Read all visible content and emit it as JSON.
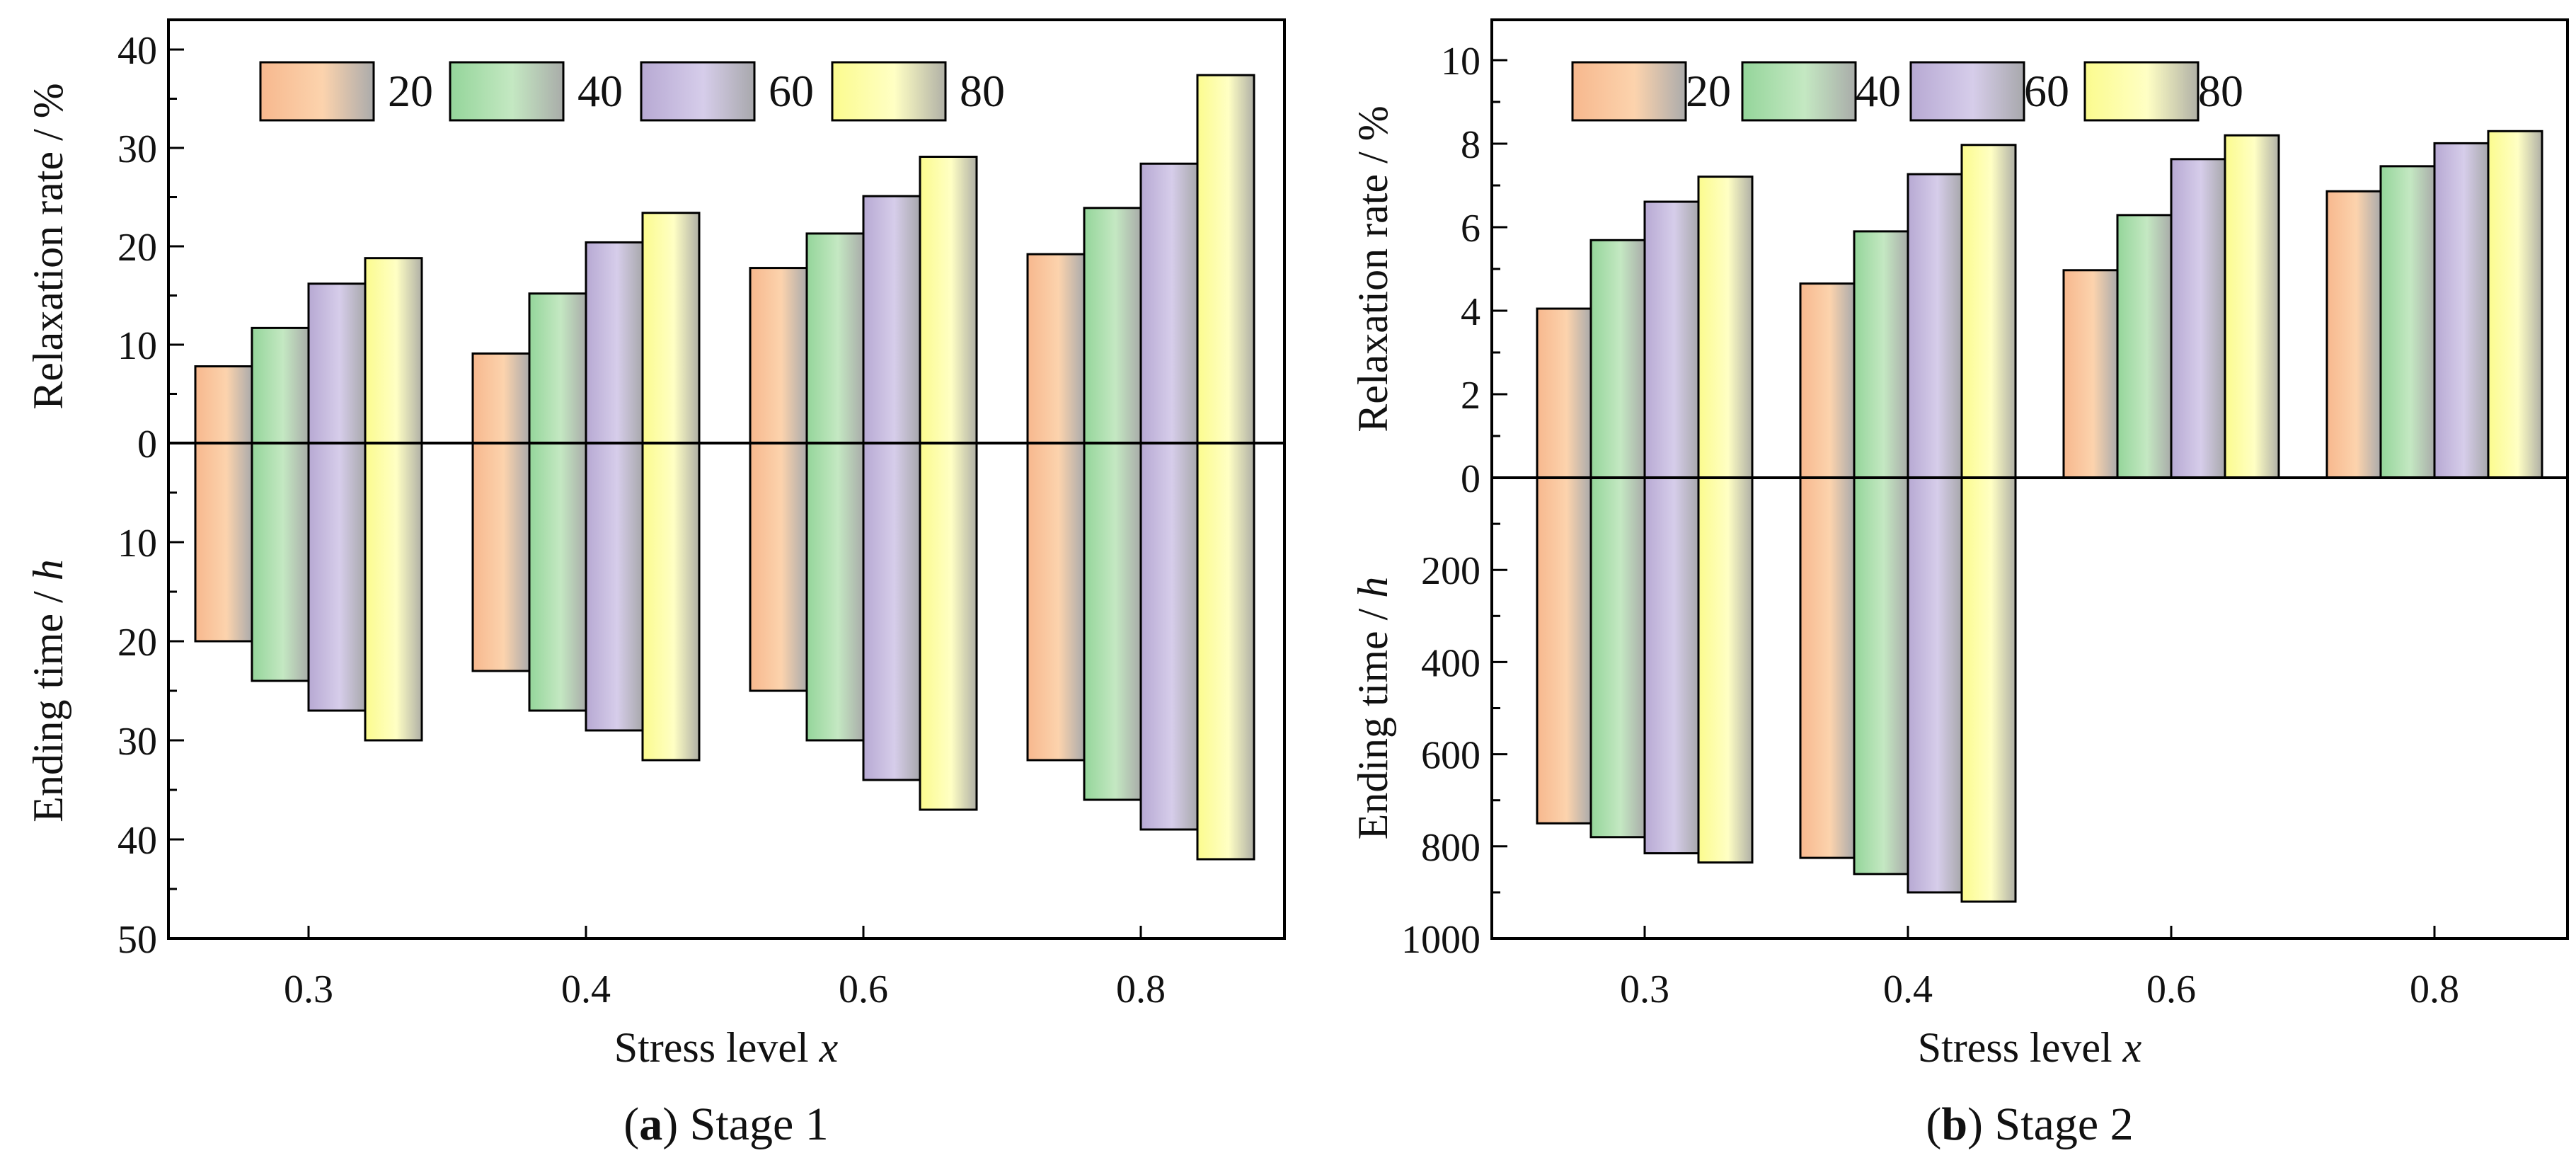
{
  "chart_data": [
    {
      "type": "bar",
      "panel": "a",
      "caption": {
        "letter": "a",
        "text": "Stage 1"
      },
      "xlabel": {
        "main": "Stress level",
        "var": "x"
      },
      "categories": [
        "0.3",
        "0.4",
        "0.6",
        "0.8"
      ],
      "legend": [
        "20",
        "40",
        "60",
        "80"
      ],
      "upper": {
        "ylabel": {
          "main": "Relaxation rate",
          "unit": " / %"
        },
        "ylim": [
          0,
          40
        ],
        "ticks": [
          "0",
          "10",
          "20",
          "30",
          "40"
        ],
        "series": [
          {
            "name": "20",
            "values": [
              7.8,
              9.1,
              17.8,
              19.2
            ]
          },
          {
            "name": "40",
            "values": [
              11.7,
              15.2,
              21.3,
              23.9
            ]
          },
          {
            "name": "60",
            "values": [
              16.2,
              20.4,
              25.1,
              28.4
            ]
          },
          {
            "name": "80",
            "values": [
              18.8,
              23.4,
              29.1,
              37.4
            ]
          }
        ]
      },
      "lower": {
        "ylabel": {
          "main": "Ending time",
          "unit": " / ",
          "var": "h"
        },
        "ylim": [
          0,
          50
        ],
        "ticks": [
          "10",
          "20",
          "30",
          "40",
          "50"
        ],
        "series": [
          {
            "name": "20",
            "values": [
              20,
              23,
              25,
              32
            ]
          },
          {
            "name": "40",
            "values": [
              24,
              27,
              30,
              36
            ]
          },
          {
            "name": "60",
            "values": [
              27,
              29,
              34,
              39
            ]
          },
          {
            "name": "80",
            "values": [
              30,
              32,
              37,
              42
            ]
          }
        ]
      }
    },
    {
      "type": "bar",
      "panel": "b",
      "caption": {
        "letter": "b",
        "text": "Stage 2"
      },
      "xlabel": {
        "main": "Stress level",
        "var": "x"
      },
      "categories": [
        "0.3",
        "0.4",
        "0.6",
        "0.8"
      ],
      "legend": [
        "20",
        "40",
        "60",
        "80"
      ],
      "upper": {
        "ylabel": {
          "main": "Relaxation rate",
          "unit": " / %"
        },
        "ylim": [
          0,
          11
        ],
        "ticks": [
          "0",
          "2",
          "4",
          "6",
          "8",
          "10"
        ],
        "series": [
          {
            "name": "20",
            "values": [
              4.05,
              4.65,
              4.97,
              6.86
            ]
          },
          {
            "name": "40",
            "values": [
              5.69,
              5.9,
              6.29,
              7.46
            ]
          },
          {
            "name": "60",
            "values": [
              6.61,
              7.27,
              7.63,
              8.01
            ]
          },
          {
            "name": "80",
            "values": [
              7.21,
              7.97,
              8.2,
              8.3
            ]
          }
        ]
      },
      "lower": {
        "ylabel": {
          "main": "Ending time",
          "unit": " / ",
          "var": "h"
        },
        "ylim": [
          0,
          1000
        ],
        "ticks": [
          "200",
          "400",
          "600",
          "800",
          "1000"
        ],
        "series": [
          {
            "name": "20",
            "values": [
              750,
              825,
              null,
              null
            ]
          },
          {
            "name": "40",
            "values": [
              780,
              860,
              null,
              null
            ]
          },
          {
            "name": "60",
            "values": [
              815,
              900,
              null,
              null
            ]
          },
          {
            "name": "80",
            "values": [
              835,
              920,
              null,
              null
            ]
          }
        ]
      }
    }
  ],
  "colors": {
    "series": [
      {
        "edge": "#ababab",
        "mid": "#f7b88e",
        "end": "#fcd3ad"
      },
      {
        "edge": "#a9aca9",
        "mid": "#94d59a",
        "end": "#c4e8c2"
      },
      {
        "edge": "#a8a8ac",
        "mid": "#b7a9d3",
        "end": "#d6cdea"
      },
      {
        "edge": "#b0b0a6",
        "mid": "#fbfb8e",
        "end": "#ffffc4"
      }
    ]
  }
}
